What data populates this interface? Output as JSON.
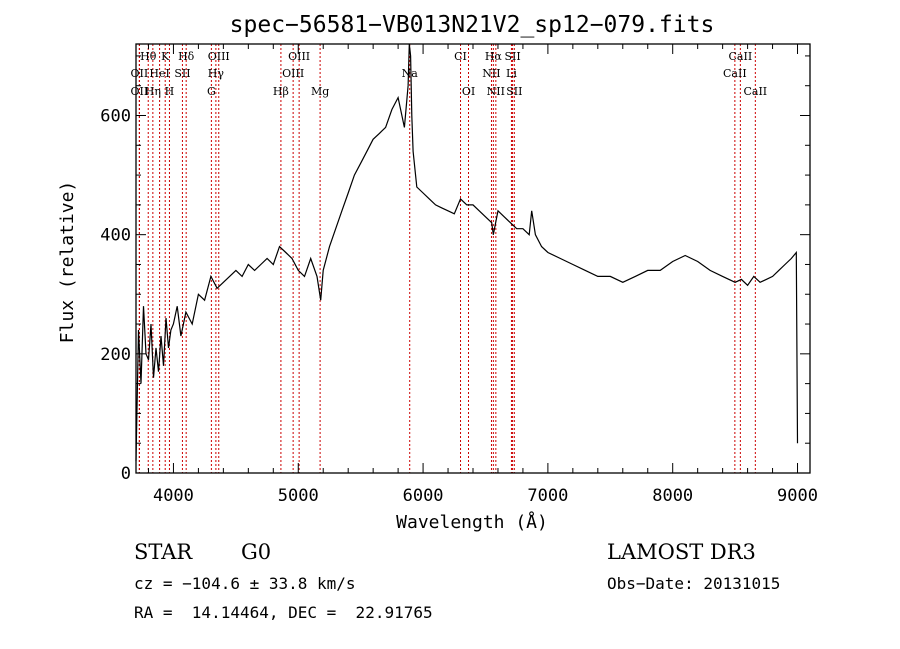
{
  "chart_data": {
    "type": "line",
    "title": "spec−56581−VB013N21V2_sp12−079.fits",
    "xlabel": "Wavelength (Å)",
    "ylabel": "Flux (relative)",
    "xlim": [
      3700,
      9100
    ],
    "ylim": [
      0,
      720
    ],
    "x_ticks": [
      4000,
      5000,
      6000,
      7000,
      8000,
      9000
    ],
    "y_ticks": [
      0,
      200,
      400,
      600
    ],
    "grid": false,
    "series": [
      {
        "x": [
          3700,
          3720,
          3740,
          3760,
          3780,
          3800,
          3820,
          3840,
          3860,
          3880,
          3900,
          3920,
          3940,
          3960,
          3980,
          4000,
          4030,
          4060,
          4100,
          4150,
          4200,
          4250,
          4300,
          4350,
          4400,
          4450,
          4500,
          4550,
          4600,
          4650,
          4700,
          4750,
          4800,
          4850,
          4900,
          4950,
          5000,
          5050,
          5100,
          5150,
          5180,
          5200,
          5250,
          5300,
          5350,
          5400,
          5450,
          5500,
          5550,
          5600,
          5650,
          5700,
          5750,
          5800,
          5850,
          5880,
          5890,
          5900,
          5910,
          5920,
          5950,
          6000,
          6050,
          6100,
          6150,
          6200,
          6250,
          6300,
          6350,
          6400,
          6450,
          6500,
          6550,
          6563,
          6600,
          6650,
          6700,
          6750,
          6800,
          6850,
          6870,
          6900,
          6950,
          7000,
          7100,
          7200,
          7300,
          7400,
          7500,
          7600,
          7700,
          7800,
          7900,
          8000,
          8100,
          8200,
          8300,
          8400,
          8500,
          8550,
          8600,
          8650,
          8700,
          8750,
          8800,
          8850,
          8900,
          8950,
          8990,
          9000
        ],
        "values": [
          20,
          240,
          150,
          280,
          200,
          190,
          250,
          160,
          210,
          170,
          230,
          180,
          260,
          210,
          240,
          250,
          280,
          230,
          270,
          250,
          300,
          290,
          330,
          310,
          320,
          330,
          340,
          330,
          350,
          340,
          350,
          360,
          350,
          380,
          370,
          360,
          340,
          330,
          360,
          330,
          290,
          340,
          380,
          410,
          440,
          470,
          500,
          520,
          540,
          560,
          570,
          580,
          610,
          630,
          580,
          650,
          720,
          700,
          600,
          540,
          480,
          470,
          460,
          450,
          445,
          440,
          435,
          460,
          450,
          450,
          440,
          430,
          420,
          400,
          440,
          430,
          420,
          410,
          410,
          400,
          440,
          400,
          380,
          370,
          360,
          350,
          340,
          330,
          330,
          320,
          330,
          340,
          340,
          355,
          365,
          355,
          340,
          330,
          320,
          325,
          315,
          330,
          320,
          325,
          330,
          340,
          350,
          360,
          370,
          50
        ]
      }
    ],
    "spectral_lines": [
      {
        "label": "Hθ",
        "x": 3798,
        "row": 0
      },
      {
        "label": "K",
        "x": 3934,
        "row": 0
      },
      {
        "label": "Hδ",
        "x": 4102,
        "row": 0
      },
      {
        "label": "OIII",
        "x": 4363,
        "row": 0
      },
      {
        "label": "OIII",
        "x": 5007,
        "row": 0
      },
      {
        "label": "CI",
        "x": 6300,
        "row": 0
      },
      {
        "label": "Hα",
        "x": 6563,
        "row": 0
      },
      {
        "label": "SII",
        "x": 6717,
        "row": 0
      },
      {
        "label": "CaII",
        "x": 8542,
        "row": 0
      },
      {
        "label": "OII",
        "x": 3727,
        "row": 1
      },
      {
        "label": "HeI",
        "x": 3889,
        "row": 1
      },
      {
        "label": "SII",
        "x": 4072,
        "row": 1
      },
      {
        "label": "Hγ",
        "x": 4340,
        "row": 1
      },
      {
        "label": "OIII",
        "x": 4959,
        "row": 1
      },
      {
        "label": "Na",
        "x": 5893,
        "row": 1
      },
      {
        "label": "NII",
        "x": 6548,
        "row": 1
      },
      {
        "label": "Li",
        "x": 6708,
        "row": 1
      },
      {
        "label": "CaII",
        "x": 8498,
        "row": 1
      },
      {
        "label": "OII",
        "x": 3727,
        "row": 2
      },
      {
        "label": "Hη",
        "x": 3835,
        "row": 2
      },
      {
        "label": "H",
        "x": 3968,
        "row": 2
      },
      {
        "label": "G",
        "x": 4304,
        "row": 2
      },
      {
        "label": "Hβ",
        "x": 4861,
        "row": 2
      },
      {
        "label": "Mg",
        "x": 5175,
        "row": 2
      },
      {
        "label": "OI",
        "x": 6364,
        "row": 2
      },
      {
        "label": "NII",
        "x": 6583,
        "row": 2
      },
      {
        "label": "SII",
        "x": 6731,
        "row": 2
      },
      {
        "label": "CaII",
        "x": 8662,
        "row": 2
      }
    ]
  },
  "info": {
    "class": "STAR",
    "subclass": "G0",
    "survey": "LAMOST DR3",
    "cz": "cz = −104.6 ± 33.8 km/s",
    "obs_date": "Obs−Date: 20131015",
    "radec": "RA =  14.14464, DEC =  22.91765"
  },
  "colors": {
    "spectrum": "#000000",
    "line_markers": "#cc0000"
  }
}
